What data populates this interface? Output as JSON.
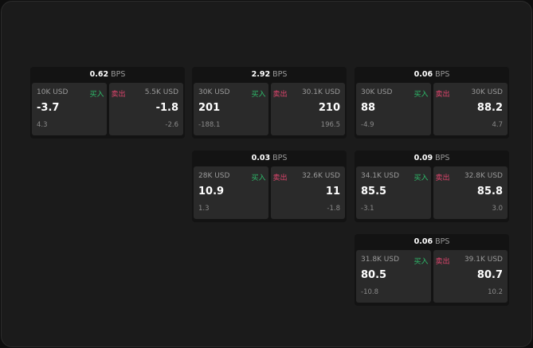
{
  "colors": {
    "buy": "#2ebd6b",
    "sell": "#e0456d"
  },
  "unit": "BPS",
  "buy_label": "买入",
  "sell_label": "卖出",
  "cards": [
    {
      "bps": "0.62",
      "buy": {
        "qty": "10K USD",
        "price": "-3.7",
        "sub": "4.3"
      },
      "sell": {
        "qty": "5.5K USD",
        "price": "-1.8",
        "sub": "-2.6"
      }
    },
    {
      "bps": "2.92",
      "buy": {
        "qty": "30K USD",
        "price": "201",
        "sub": "-188.1"
      },
      "sell": {
        "qty": "30.1K USD",
        "price": "210",
        "sub": "196.5"
      }
    },
    {
      "bps": "0.06",
      "buy": {
        "qty": "30K USD",
        "price": "88",
        "sub": "-4.9"
      },
      "sell": {
        "qty": "30K USD",
        "price": "88.2",
        "sub": "4.7"
      }
    },
    {
      "bps": "0.03",
      "buy": {
        "qty": "28K USD",
        "price": "10.9",
        "sub": "1.3"
      },
      "sell": {
        "qty": "32.6K USD",
        "price": "11",
        "sub": "-1.8"
      }
    },
    {
      "bps": "0.09",
      "buy": {
        "qty": "34.1K USD",
        "price": "85.5",
        "sub": "-3.1"
      },
      "sell": {
        "qty": "32.8K USD",
        "price": "85.8",
        "sub": "3.0"
      }
    },
    {
      "bps": "0.06",
      "buy": {
        "qty": "31.8K USD",
        "price": "80.5",
        "sub": "-10.8"
      },
      "sell": {
        "qty": "39.1K USD",
        "price": "80.7",
        "sub": "10.2"
      }
    }
  ]
}
